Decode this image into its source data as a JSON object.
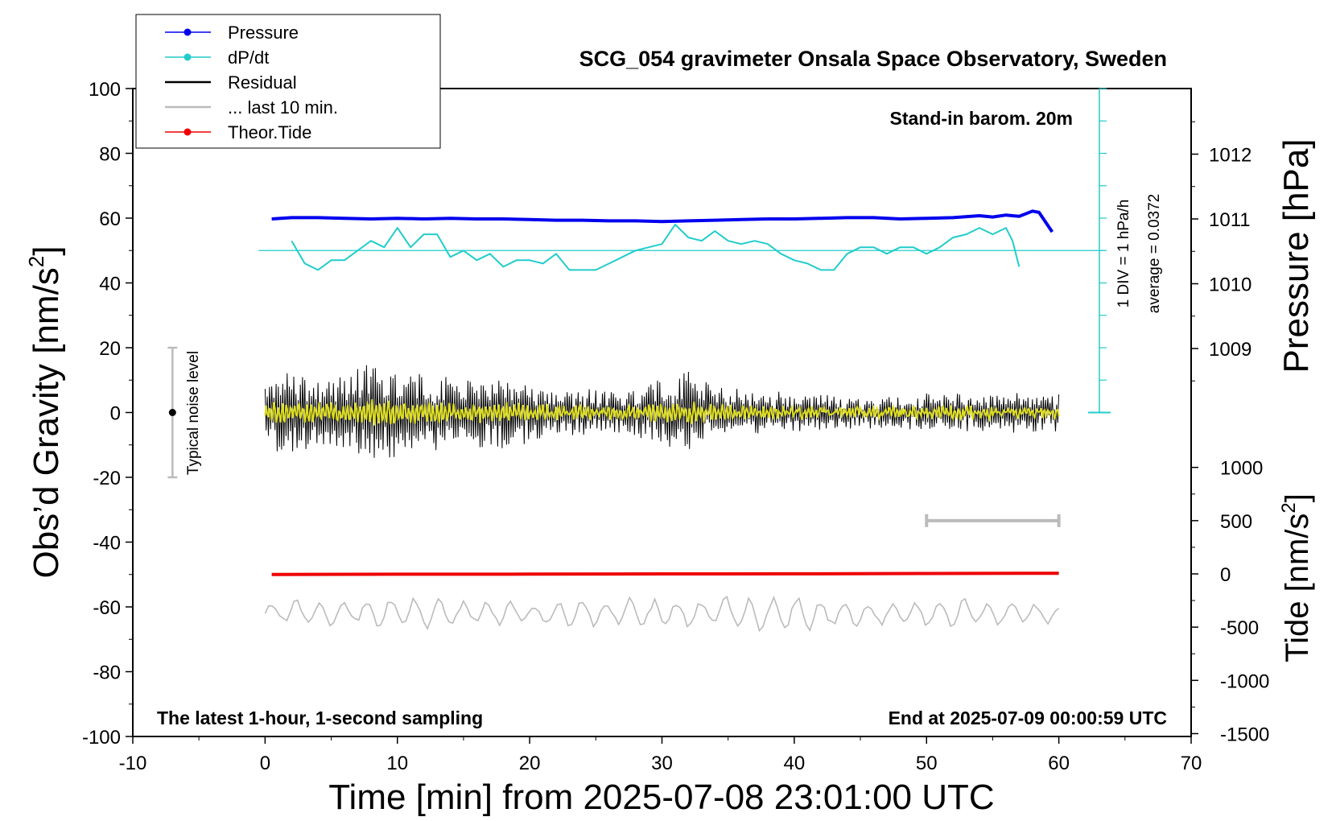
{
  "chart_data": {
    "type": "line",
    "title": "SCG_054 gravimeter Onsala Space Observatory, Sweden",
    "xlabel": "Time [min] from 2025-07-08 23:01:00 UTC",
    "ylabel_left": "Obs’d Gravity [nm/s",
    "ylabel_left_sup": "2",
    "ylabel_left_end": "]",
    "ylabel_right_top": "Pressure [hPa]",
    "ylabel_right_bottom": "Tide [nm/s",
    "ylabel_right_bottom_sup": "2",
    "ylabel_right_bottom_end": "]",
    "xlim": [
      -10,
      70
    ],
    "ylim_left": [
      -100,
      100
    ],
    "x_ticks": [
      -10,
      0,
      10,
      20,
      30,
      40,
      50,
      60,
      70
    ],
    "y_ticks_left": [
      -100,
      -80,
      -60,
      -40,
      -20,
      0,
      20,
      40,
      60,
      80,
      100
    ],
    "pressure_ticks": [
      1009,
      1010,
      1011,
      1012
    ],
    "tide_ticks": [
      -1500,
      -1000,
      -500,
      0,
      500,
      1000
    ],
    "grid": false,
    "legend_position": "top-left",
    "annotations": {
      "barometer": "Stand-in barom. 20m",
      "bottom_left": "The latest 1-hour, 1-second sampling",
      "bottom_right": "End at 2025-07-09 00:00:59 UTC",
      "noise": "Typical noise level",
      "div_scale": "1 DIV = 1 hPa/h",
      "average": "average = 0.0372"
    },
    "colors": {
      "pressure": "#0000ee",
      "dpdt": "#22cccc",
      "residual": "#000000",
      "last10": "#bbbbbb",
      "tide": "#ee0000",
      "residual_smooth": "#dddd22"
    },
    "series": [
      {
        "name": "Pressure",
        "axis": "pressure_hPa",
        "x": [
          0.5,
          2,
          4,
          6,
          8,
          10,
          12,
          14,
          16,
          18,
          20,
          22,
          24,
          26,
          28,
          30,
          32,
          34,
          36,
          38,
          40,
          42,
          44,
          46,
          48,
          50,
          52,
          54,
          55,
          56,
          57,
          58,
          58.5,
          59,
          59.5
        ],
        "values": [
          1011.0,
          1011.02,
          1011.02,
          1011.01,
          1011.0,
          1011.01,
          1011.0,
          1011.01,
          1011.0,
          1011.0,
          1010.99,
          1010.98,
          1010.98,
          1010.97,
          1010.97,
          1010.96,
          1010.97,
          1010.98,
          1010.99,
          1011.0,
          1011.0,
          1011.01,
          1011.02,
          1011.02,
          1011.0,
          1011.01,
          1011.02,
          1011.05,
          1011.03,
          1011.06,
          1011.04,
          1011.12,
          1011.1,
          1010.95,
          1010.8
        ]
      },
      {
        "name": "dP/dt",
        "axis": "left",
        "x": [
          2,
          3,
          4,
          5,
          6,
          7,
          8,
          9,
          10,
          11,
          12,
          13,
          14,
          15,
          16,
          17,
          18,
          19,
          20,
          21,
          22,
          23,
          24,
          25,
          26,
          27,
          28,
          29,
          30,
          31,
          32,
          33,
          34,
          35,
          36,
          37,
          38,
          39,
          40,
          41,
          42,
          43,
          44,
          45,
          46,
          47,
          48,
          49,
          50,
          51,
          52,
          53,
          54,
          55,
          56,
          56.5,
          57
        ],
        "values": [
          53,
          46,
          44,
          47,
          47,
          50,
          53,
          51,
          57,
          51,
          55,
          55,
          48,
          50,
          47,
          49,
          45,
          47,
          47,
          46,
          49,
          44,
          44,
          44,
          46,
          48,
          50,
          51,
          52,
          58,
          54,
          53,
          56,
          53,
          52,
          53,
          52,
          49,
          47,
          46,
          44,
          44,
          49,
          51,
          51,
          49,
          51,
          51,
          49,
          51,
          54,
          55,
          57,
          55,
          57,
          53,
          45
        ]
      },
      {
        "name": "Residual",
        "axis": "left",
        "x_range": [
          0,
          60
        ],
        "amplitude_by_min": [
          [
            0,
            10
          ],
          [
            2,
            12
          ],
          [
            5,
            9
          ],
          [
            8,
            14
          ],
          [
            10,
            13
          ],
          [
            12,
            10
          ],
          [
            15,
            9
          ],
          [
            18,
            10
          ],
          [
            22,
            6
          ],
          [
            26,
            6
          ],
          [
            30,
            9
          ],
          [
            32,
            11
          ],
          [
            35,
            6
          ],
          [
            40,
            5
          ],
          [
            45,
            4
          ],
          [
            50,
            5
          ],
          [
            55,
            5
          ],
          [
            60,
            5
          ]
        ]
      },
      {
        "name": "... last 10 min.",
        "axis": "left",
        "x_range": [
          0,
          60
        ],
        "offset": -62,
        "amplitude_by_min": [
          [
            0,
            4
          ],
          [
            10,
            5
          ],
          [
            20,
            4
          ],
          [
            30,
            5
          ],
          [
            38,
            7
          ],
          [
            45,
            4
          ],
          [
            55,
            5
          ],
          [
            60,
            3
          ]
        ]
      },
      {
        "name": "Theor.Tide",
        "axis": "tide_nm_s2",
        "x": [
          0.5,
          10,
          20,
          30,
          40,
          50,
          60
        ],
        "values": [
          -5,
          -3,
          -2,
          0,
          1,
          4,
          6
        ]
      }
    ],
    "noise_bar": {
      "x": -7,
      "center": 0,
      "low": -20,
      "high": 20
    },
    "interval_bar": {
      "x": [
        50,
        60
      ],
      "tide_value": 500
    }
  }
}
